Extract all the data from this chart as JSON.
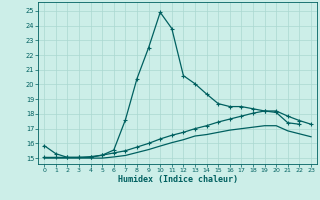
{
  "xlabel": "Humidex (Indice chaleur)",
  "xlim": [
    -0.5,
    23.5
  ],
  "ylim": [
    14.6,
    25.6
  ],
  "yticks": [
    15,
    16,
    17,
    18,
    19,
    20,
    21,
    22,
    23,
    24,
    25
  ],
  "xticks": [
    0,
    1,
    2,
    3,
    4,
    5,
    6,
    7,
    8,
    9,
    10,
    11,
    12,
    13,
    14,
    15,
    16,
    17,
    18,
    19,
    20,
    21,
    22,
    23
  ],
  "bg_color": "#cceee8",
  "grid_color": "#aad8d0",
  "line_color": "#006060",
  "line1_x": [
    0,
    1,
    2,
    3,
    4,
    5,
    6,
    7,
    8,
    9,
    10,
    11,
    12,
    13,
    14,
    15,
    16,
    17,
    18,
    19,
    20,
    21,
    22
  ],
  "line1_y": [
    15.85,
    15.3,
    15.05,
    15.05,
    15.05,
    15.2,
    15.55,
    17.6,
    20.4,
    22.5,
    24.9,
    23.8,
    20.6,
    20.05,
    19.35,
    18.7,
    18.5,
    18.5,
    18.35,
    18.2,
    18.1,
    17.4,
    17.3
  ],
  "line2_x": [
    0,
    1,
    2,
    3,
    4,
    5,
    6,
    7,
    8,
    9,
    10,
    11,
    12,
    13,
    14,
    15,
    16,
    17,
    18,
    19,
    20,
    21,
    22,
    23
  ],
  "line2_y": [
    15.05,
    15.05,
    15.05,
    15.05,
    15.1,
    15.2,
    15.35,
    15.5,
    15.75,
    16.0,
    16.3,
    16.55,
    16.75,
    17.0,
    17.2,
    17.45,
    17.65,
    17.85,
    18.05,
    18.2,
    18.2,
    17.85,
    17.55,
    17.3
  ],
  "line3_x": [
    0,
    1,
    2,
    3,
    4,
    5,
    6,
    7,
    8,
    9,
    10,
    11,
    12,
    13,
    14,
    15,
    16,
    17,
    18,
    19,
    20,
    21,
    22,
    23
  ],
  "line3_y": [
    15.0,
    15.0,
    15.0,
    15.0,
    15.0,
    15.0,
    15.08,
    15.18,
    15.38,
    15.58,
    15.82,
    16.05,
    16.25,
    16.5,
    16.6,
    16.75,
    16.9,
    17.0,
    17.1,
    17.2,
    17.2,
    16.85,
    16.65,
    16.45
  ]
}
